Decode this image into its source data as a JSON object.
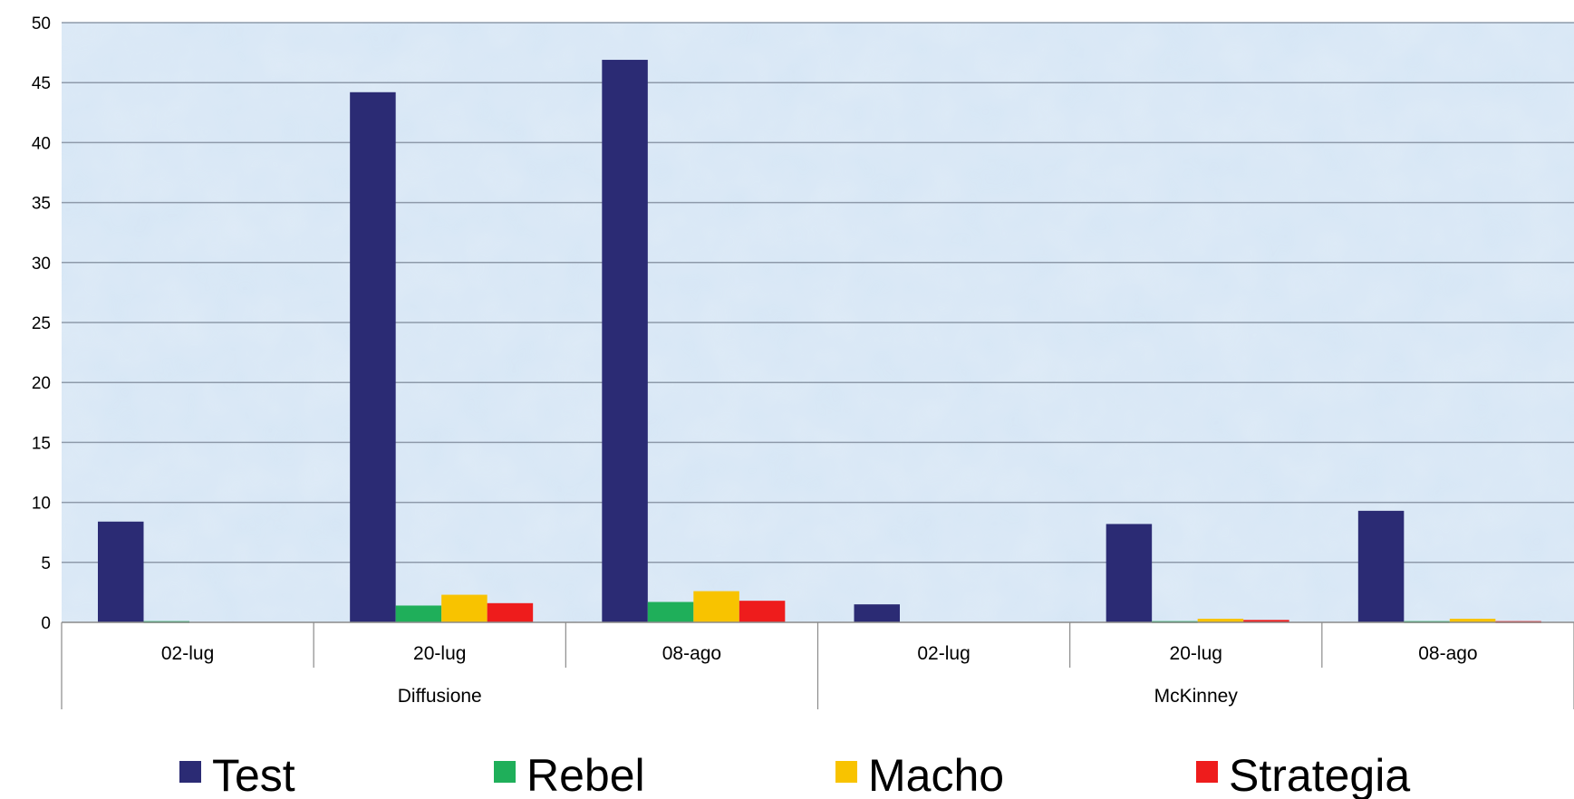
{
  "chart_data": {
    "type": "bar",
    "title": "",
    "xlabel": "",
    "ylabel": "",
    "ylim": [
      0,
      50
    ],
    "yticks": [
      0,
      5,
      10,
      15,
      20,
      25,
      30,
      35,
      40,
      45,
      50
    ],
    "groups": [
      {
        "label": "Diffusione",
        "categories": [
          "02-lug",
          "20-lug",
          "08-ago"
        ]
      },
      {
        "label": "McKinney",
        "categories": [
          "02-lug",
          "20-lug",
          "08-ago"
        ]
      }
    ],
    "categories": [
      "02-lug",
      "20-lug",
      "08-ago",
      "02-lug",
      "20-lug",
      "08-ago"
    ],
    "series": [
      {
        "name": "Test",
        "color": "#2B2B74",
        "values": [
          8.4,
          44.2,
          46.9,
          1.5,
          8.2,
          9.3
        ]
      },
      {
        "name": "Rebel",
        "color": "#1FAF5A",
        "values": [
          0.1,
          1.4,
          1.7,
          0.0,
          0.1,
          0.1
        ]
      },
      {
        "name": "Macho",
        "color": "#F8C300",
        "values": [
          0.0,
          2.3,
          2.6,
          0.0,
          0.3,
          0.3
        ]
      },
      {
        "name": "Strategia",
        "color": "#EE1C1C",
        "values": [
          0.0,
          1.6,
          1.8,
          0.0,
          0.2,
          0.1
        ]
      }
    ],
    "grid": true,
    "legend_position": "bottom",
    "plot_background": "#D6E6F5",
    "gridline_color": "#8E9AAA"
  }
}
